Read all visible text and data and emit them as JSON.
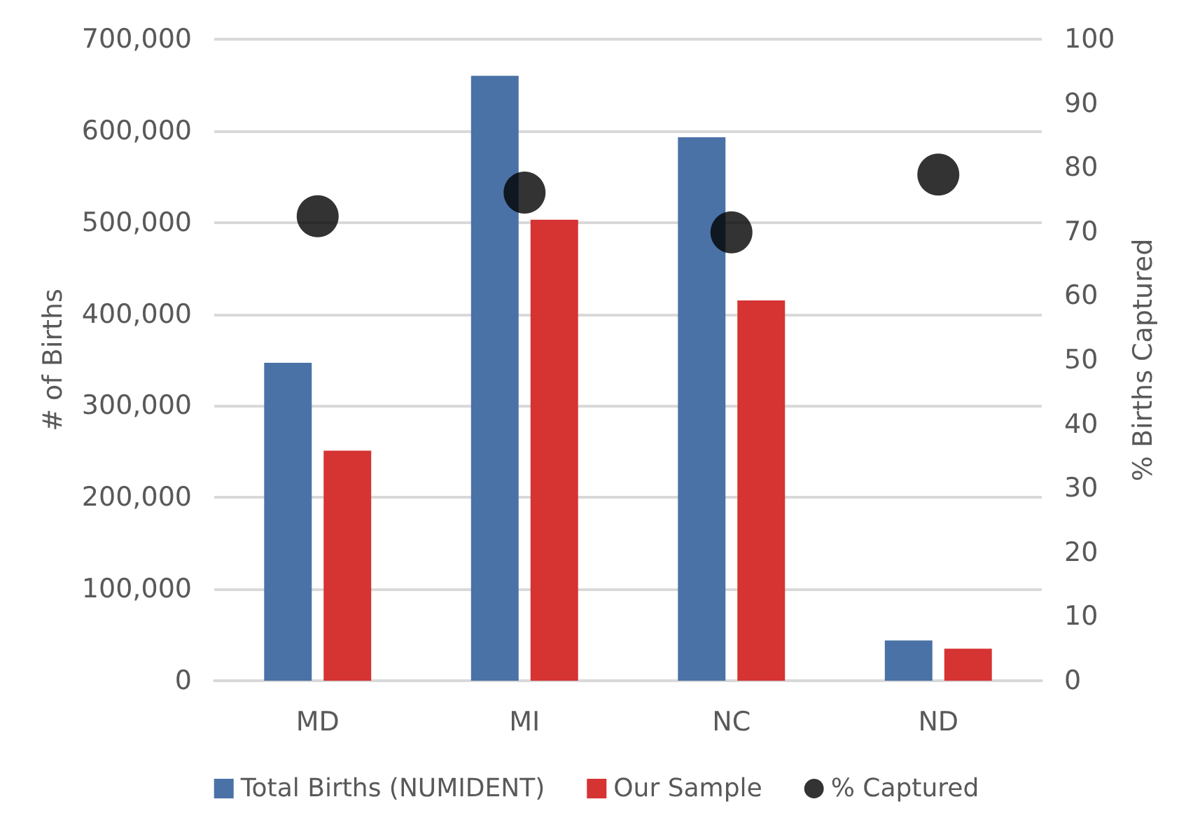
{
  "chart_data": {
    "type": "bar",
    "categories": [
      "MD",
      "MI",
      "NC",
      "ND"
    ],
    "ylabel": "# of Births",
    "y2label": "% Births Captured",
    "series": [
      {
        "name": "Total Births (NUMIDENT)",
        "color": "#4a72a6",
        "values": [
          347000,
          660000,
          593000,
          44000
        ]
      },
      {
        "name": "Our Sample",
        "color": "#d63333",
        "values": [
          251000,
          503000,
          415000,
          35000
        ]
      },
      {
        "name": "% Captured",
        "type": "scatter",
        "axis": "y2",
        "color": "#000000",
        "marker": "circle",
        "values": [
          72.4,
          76.1,
          69.9,
          78.9
        ]
      }
    ],
    "ylim": [
      0,
      700000
    ],
    "yticks": [
      0,
      {
        "value": 100000,
        "label": "100,000"
      },
      {
        "value": 200000,
        "label": "200,000"
      },
      {
        "value": 300000,
        "label": "300,000"
      },
      {
        "value": 400000,
        "label": "400,000"
      },
      {
        "value": 500000,
        "label": "500,000"
      },
      {
        "value": 600000,
        "label": "600,000"
      },
      {
        "value": 700000,
        "label": "700,000"
      }
    ],
    "y2lim": [
      0,
      100
    ],
    "y2ticks": [
      0,
      10,
      20,
      30,
      40,
      50,
      60,
      70,
      80,
      90,
      100
    ],
    "grid": "y",
    "legend": "bottom"
  }
}
